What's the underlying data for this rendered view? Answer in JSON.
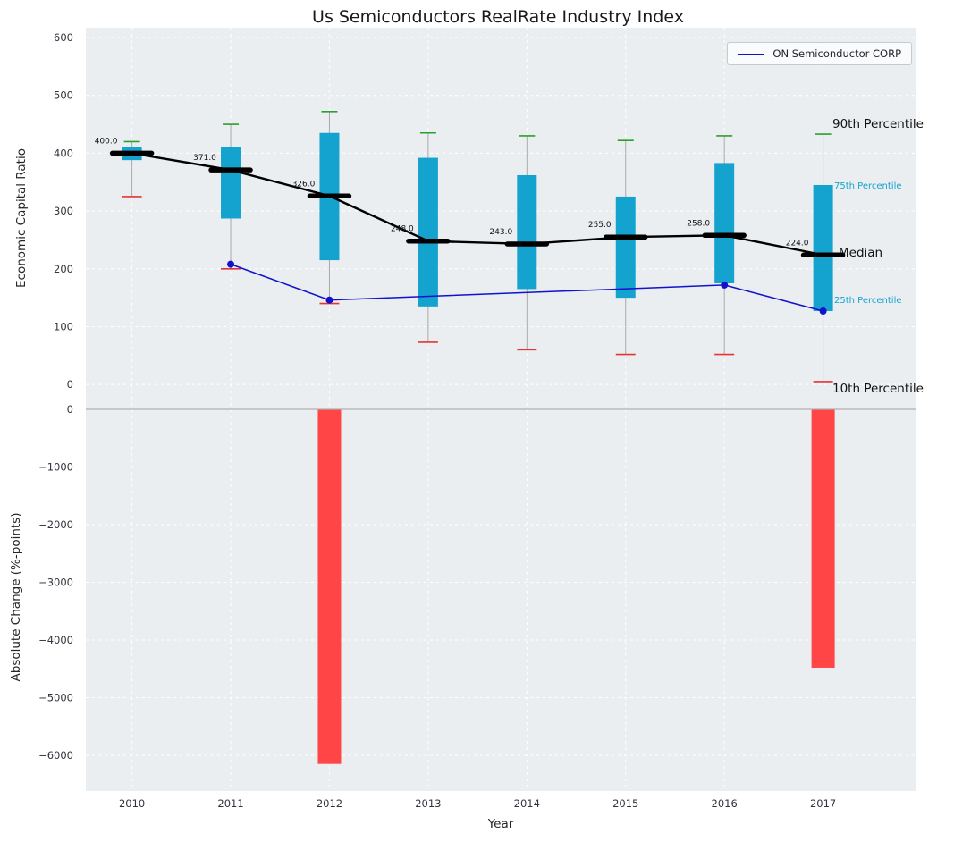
{
  "figure": {
    "title": "Us Semiconductors RealRate Industry Index"
  },
  "colors": {
    "background": "#ebeef0",
    "grid": "#ffffff",
    "box": "#14a3cf",
    "cap_top": "#2ca02c",
    "cap_bottom": "#e53434",
    "bar": "#ff4545",
    "overlay": "#1212cc",
    "median": "#000000",
    "tick_text": "#33333d"
  },
  "chart_data": [
    {
      "type": "boxplot",
      "title": "Us Semiconductors RealRate Industry Index",
      "ylabel": "Economic Capital Ratio",
      "categories": [
        2010,
        2011,
        2012,
        2013,
        2014,
        2015,
        2016,
        2017
      ],
      "yticks": [
        0,
        100,
        200,
        300,
        400,
        500,
        600
      ],
      "ylim": [
        -43,
        617
      ],
      "grid": true,
      "legend_position": "upper right",
      "series": {
        "median": [
          400,
          371,
          326,
          248,
          243,
          255,
          258,
          224
        ],
        "q1": [
          388,
          287,
          215,
          135,
          165,
          150,
          175,
          127
        ],
        "q3": [
          410,
          410,
          435,
          392,
          362,
          325,
          383,
          345
        ],
        "p10": [
          325,
          200,
          140,
          73,
          60,
          52,
          52,
          5
        ],
        "p90": [
          420,
          450,
          472,
          435,
          430,
          422,
          430,
          433
        ]
      },
      "median_labels": [
        "400.0",
        "371.0",
        "326.0",
        "248.0",
        "243.0",
        "255.0",
        "258.0",
        "224.0"
      ],
      "overlay_line": {
        "name": "ON Semiconductor CORP",
        "points": [
          {
            "x": 2011,
            "y": 208
          },
          {
            "x": 2012,
            "y": 146
          },
          {
            "x": 2016,
            "y": 172
          },
          {
            "x": 2017,
            "y": 127
          }
        ]
      },
      "percentile_labels": {
        "p90": "90th Percentile",
        "p75": "75th Percentile",
        "median": "Median",
        "p25": "25th Percentile",
        "p10": "10th Percentile"
      }
    },
    {
      "type": "bar",
      "ylabel": "Absolute Change (%-points)",
      "xlabel": "Year",
      "categories": [
        2010,
        2011,
        2012,
        2013,
        2014,
        2015,
        2016,
        2017
      ],
      "values": [
        0,
        0,
        -6150,
        0,
        0,
        0,
        0,
        -4480
      ],
      "yticks": [
        0,
        -1000,
        -2000,
        -3000,
        -4000,
        -5000,
        -6000
      ],
      "ylim": [
        -6620,
        0
      ],
      "grid": true
    }
  ]
}
